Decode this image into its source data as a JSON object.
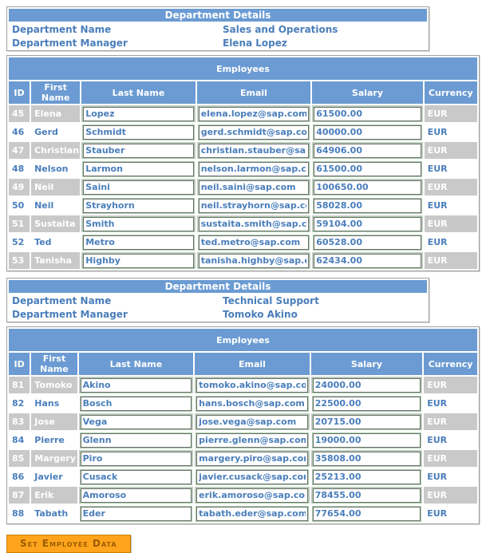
{
  "colors": {
    "header_blue": "#6b9bd2",
    "text_blue": "#4a7ebb",
    "alt_row_gray": "#c9c9c9",
    "input_border_green": "#a9cfab",
    "button_orange": "#ffa41c",
    "button_text": "#9c5b00"
  },
  "sections": [
    {
      "details": {
        "title": "Department Details",
        "name_label": "Department Name",
        "name_value": "Sales and Operations",
        "manager_label": "Department Manager",
        "manager_value": "Elena Lopez"
      },
      "employees": {
        "title": "Employees",
        "columns": [
          "ID",
          "First Name",
          "Last Name",
          "Email",
          "Salary",
          "Currency"
        ],
        "rows": [
          {
            "id": "45",
            "first": "Elena",
            "last": "Lopez",
            "email": "elena.lopez@sap.com",
            "salary": "61500.00",
            "currency": "EUR"
          },
          {
            "id": "46",
            "first": "Gerd",
            "last": "Schmidt",
            "email": "gerd.schmidt@sap.com",
            "salary": "40000.00",
            "currency": "EUR"
          },
          {
            "id": "47",
            "first": "Christian",
            "last": "Stauber",
            "email": "christian.stauber@sap.com",
            "salary": "64906.00",
            "currency": "EUR"
          },
          {
            "id": "48",
            "first": "Nelson",
            "last": "Larmon",
            "email": "nelson.larmon@sap.com",
            "salary": "61500.00",
            "currency": "EUR"
          },
          {
            "id": "49",
            "first": "Neil",
            "last": "Saini",
            "email": "neil.saini@sap.com",
            "salary": "100650.00",
            "currency": "EUR"
          },
          {
            "id": "50",
            "first": "Neil",
            "last": "Strayhorn",
            "email": "neil.strayhorn@sap.com",
            "salary": "58028.00",
            "currency": "EUR"
          },
          {
            "id": "51",
            "first": "Sustaita",
            "last": "Smith",
            "email": "sustaita.smith@sap.com",
            "salary": "59104.00",
            "currency": "EUR"
          },
          {
            "id": "52",
            "first": "Ted",
            "last": "Metro",
            "email": "ted.metro@sap.com",
            "salary": "60528.00",
            "currency": "EUR"
          },
          {
            "id": "53",
            "first": "Tanisha",
            "last": "Highby",
            "email": "tanisha.highby@sap.com",
            "salary": "62434.00",
            "currency": "EUR"
          }
        ]
      }
    },
    {
      "details": {
        "title": "Department Details",
        "name_label": "Department Name",
        "name_value": "Technical Support",
        "manager_label": "Department Manager",
        "manager_value": "Tomoko Akino"
      },
      "employees": {
        "title": "Employees",
        "columns": [
          "ID",
          "First Name",
          "Last Name",
          "Email",
          "Salary",
          "Currency"
        ],
        "rows": [
          {
            "id": "81",
            "first": "Tomoko",
            "last": "Akino",
            "email": "tomoko.akino@sap.com",
            "salary": "24000.00",
            "currency": "EUR"
          },
          {
            "id": "82",
            "first": "Hans",
            "last": "Bosch",
            "email": "hans.bosch@sap.com",
            "salary": "22500.00",
            "currency": "EUR"
          },
          {
            "id": "83",
            "first": "Jose",
            "last": "Vega",
            "email": "jose.vega@sap.com",
            "salary": "20715.00",
            "currency": "EUR"
          },
          {
            "id": "84",
            "first": "Pierre",
            "last": "Glenn",
            "email": "pierre.glenn@sap.com",
            "salary": "19000.00",
            "currency": "EUR"
          },
          {
            "id": "85",
            "first": "Margery",
            "last": "Piro",
            "email": "margery.piro@sap.com",
            "salary": "35808.00",
            "currency": "EUR"
          },
          {
            "id": "86",
            "first": "Javier",
            "last": "Cusack",
            "email": "javier.cusack@sap.com",
            "salary": "25213.00",
            "currency": "EUR"
          },
          {
            "id": "87",
            "first": "Erik",
            "last": "Amoroso",
            "email": "erik.amoroso@sap.com",
            "salary": "78455.00",
            "currency": "EUR"
          },
          {
            "id": "88",
            "first": "Tabath",
            "last": "Eder",
            "email": "tabath.eder@sap.com",
            "salary": "77654.00",
            "currency": "EUR"
          }
        ]
      }
    }
  ],
  "footer": {
    "set_button_label": "Set Employee Data"
  }
}
